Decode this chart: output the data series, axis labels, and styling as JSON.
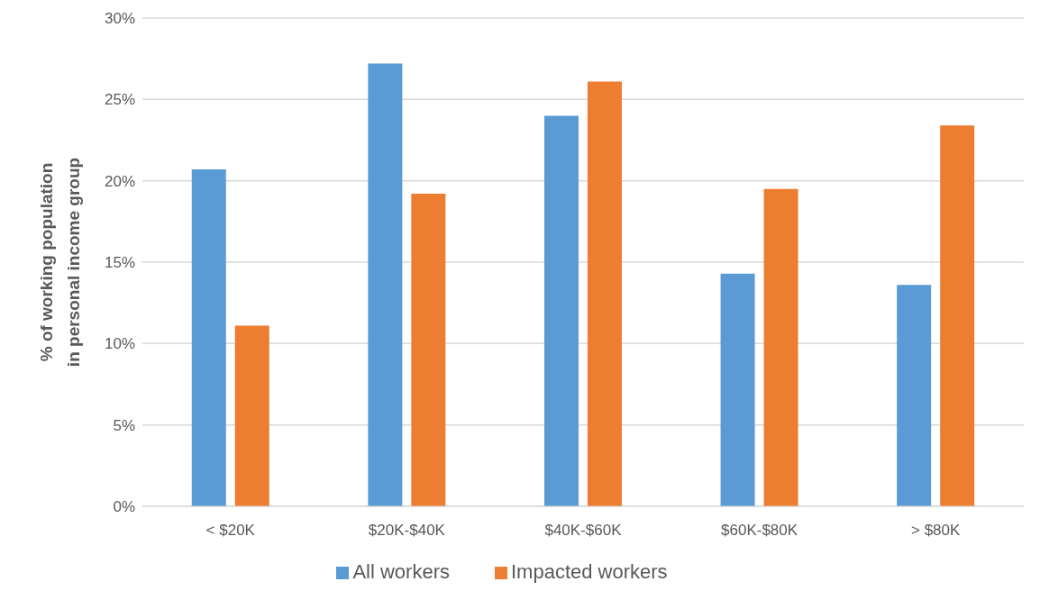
{
  "chart_data": {
    "type": "bar",
    "ylabel": "% of working population in personal income group",
    "categories": [
      "< $20K",
      "$20K-$40K",
      "$40K-$60K",
      "$60K-$80K",
      "> $80K"
    ],
    "series": [
      {
        "name": "All workers",
        "color": "#5b9bd5",
        "values": [
          20.7,
          27.2,
          24.0,
          14.3,
          13.6
        ]
      },
      {
        "name": "Impacted workers",
        "color": "#ed7d31",
        "values": [
          11.1,
          19.2,
          26.1,
          19.5,
          23.4
        ]
      }
    ],
    "ylim": [
      0,
      30
    ],
    "yticks": [
      {
        "value": 0,
        "label": "0%"
      },
      {
        "value": 5,
        "label": "5%"
      },
      {
        "value": 10,
        "label": "10%"
      },
      {
        "value": 15,
        "label": "15%"
      },
      {
        "value": 20,
        "label": "20%"
      },
      {
        "value": 25,
        "label": "25%"
      },
      {
        "value": 30,
        "label": "30%"
      }
    ],
    "grid": "y",
    "legend": "bottom"
  }
}
